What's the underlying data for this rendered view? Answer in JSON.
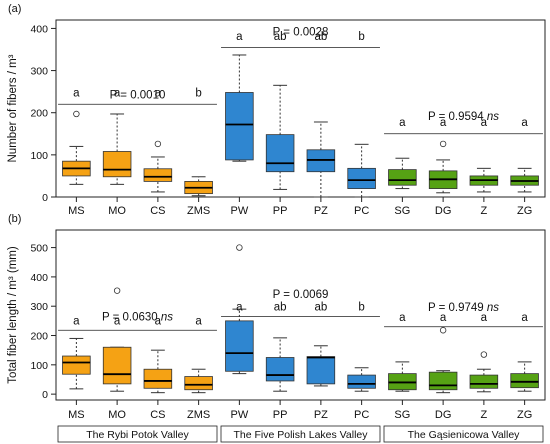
{
  "chart_data": [
    {
      "type": "box",
      "panel_label": "(a)",
      "ylabel": "Number of fibers / m³",
      "ylim": [
        0,
        420
      ],
      "yticks": [
        0,
        100,
        200,
        300,
        400
      ],
      "categories": [
        "MS",
        "MO",
        "CS",
        "ZMS",
        "PW",
        "PP",
        "PZ",
        "PC",
        "SG",
        "DG",
        "Z",
        "ZG"
      ],
      "colors": [
        "#f5a214",
        "#f5a214",
        "#f5a214",
        "#f5a214",
        "#2f86d0",
        "#2f86d0",
        "#2f86d0",
        "#2f86d0",
        "#56a214",
        "#56a214",
        "#56a214",
        "#56a214"
      ],
      "boxes": [
        {
          "min": 30,
          "q1": 50,
          "median": 68,
          "q3": 85,
          "max": 120,
          "outliers": [
            197
          ]
        },
        {
          "min": 30,
          "q1": 48,
          "median": 65,
          "q3": 108,
          "max": 197,
          "outliers": []
        },
        {
          "min": 12,
          "q1": 37,
          "median": 48,
          "q3": 67,
          "max": 95,
          "outliers": [
            126
          ]
        },
        {
          "min": 3,
          "q1": 8,
          "median": 22,
          "q3": 37,
          "max": 48,
          "outliers": []
        },
        {
          "min": 85,
          "q1": 88,
          "median": 172,
          "q3": 248,
          "max": 337,
          "outliers": []
        },
        {
          "min": 18,
          "q1": 60,
          "median": 80,
          "q3": 148,
          "max": 265,
          "outliers": []
        },
        {
          "min": 0,
          "q1": 60,
          "median": 88,
          "q3": 112,
          "max": 178,
          "outliers": []
        },
        {
          "min": 0,
          "q1": 20,
          "median": 40,
          "q3": 68,
          "max": 125,
          "outliers": []
        },
        {
          "min": 20,
          "q1": 28,
          "median": 40,
          "q3": 65,
          "max": 92,
          "outliers": []
        },
        {
          "min": 10,
          "q1": 20,
          "median": 42,
          "q3": 62,
          "max": 88,
          "outliers": [
            126
          ]
        },
        {
          "min": 12,
          "q1": 28,
          "median": 40,
          "q3": 50,
          "max": 68,
          "outliers": []
        },
        {
          "min": 12,
          "q1": 28,
          "median": 38,
          "q3": 50,
          "max": 68,
          "outliers": []
        }
      ],
      "letters": [
        "a",
        "a",
        "a",
        "b",
        "a",
        "ab",
        "ab",
        "b",
        "a",
        "a",
        "a",
        "a"
      ],
      "groups": [
        {
          "from": 0,
          "to": 3,
          "p_text": "P = 0.0010",
          "ns": "",
          "line_y": 220,
          "p_y": 243,
          "letter_y": 238
        },
        {
          "from": 4,
          "to": 7,
          "p_text": "P = 0.0028",
          "ns": "",
          "line_y": 355,
          "p_y": 393,
          "letter_y": 373
        },
        {
          "from": 8,
          "to": 11,
          "p_text": "P = 0.9594",
          "ns": "ns",
          "line_y": 150,
          "p_y": 192,
          "letter_y": 168
        }
      ]
    },
    {
      "type": "box",
      "panel_label": "(b)",
      "ylabel": "Total fiber length / m³ (mm)",
      "ylim": [
        -20,
        560
      ],
      "yticks": [
        0,
        100,
        200,
        300,
        400,
        500
      ],
      "categories": [
        "MS",
        "MO",
        "CS",
        "ZMS",
        "PW",
        "PP",
        "PZ",
        "PC",
        "SG",
        "DG",
        "Z",
        "ZG"
      ],
      "colors": [
        "#f5a214",
        "#f5a214",
        "#f5a214",
        "#f5a214",
        "#2f86d0",
        "#2f86d0",
        "#2f86d0",
        "#2f86d0",
        "#56a214",
        "#56a214",
        "#56a214",
        "#56a214"
      ],
      "boxes": [
        {
          "min": 18,
          "q1": 68,
          "median": 108,
          "q3": 130,
          "max": 190,
          "outliers": []
        },
        {
          "min": 10,
          "q1": 35,
          "median": 68,
          "q3": 160,
          "max": 160,
          "outliers": [
            353
          ]
        },
        {
          "min": 5,
          "q1": 20,
          "median": 45,
          "q3": 85,
          "max": 150,
          "outliers": []
        },
        {
          "min": 5,
          "q1": 15,
          "median": 32,
          "q3": 60,
          "max": 85,
          "outliers": []
        },
        {
          "min": 70,
          "q1": 78,
          "median": 140,
          "q3": 250,
          "max": 290,
          "outliers": [
            500
          ]
        },
        {
          "min": 10,
          "q1": 45,
          "median": 65,
          "q3": 125,
          "max": 192,
          "outliers": []
        },
        {
          "min": 28,
          "q1": 35,
          "median": 125,
          "q3": 128,
          "max": 165,
          "outliers": []
        },
        {
          "min": 10,
          "q1": 20,
          "median": 35,
          "q3": 65,
          "max": 90,
          "outliers": []
        },
        {
          "min": 10,
          "q1": 15,
          "median": 40,
          "q3": 70,
          "max": 110,
          "outliers": []
        },
        {
          "min": 5,
          "q1": 15,
          "median": 30,
          "q3": 75,
          "max": 80,
          "outliers": [
            218
          ]
        },
        {
          "min": 8,
          "q1": 20,
          "median": 35,
          "q3": 65,
          "max": 85,
          "outliers": [
            135
          ]
        },
        {
          "min": 10,
          "q1": 22,
          "median": 42,
          "q3": 70,
          "max": 110,
          "outliers": []
        }
      ],
      "letters": [
        "a",
        "a",
        "a",
        "a",
        "a",
        "ab",
        "ab",
        "b",
        "a",
        "a",
        "a",
        "a"
      ],
      "groups": [
        {
          "from": 0,
          "to": 3,
          "p_text": "P = 0.0630",
          "ns": "ns",
          "line_y": 218,
          "p_y": 265,
          "letter_y": 237
        },
        {
          "from": 4,
          "to": 7,
          "p_text": "P = 0.0069",
          "ns": "",
          "line_y": 265,
          "p_y": 342,
          "letter_y": 285
        },
        {
          "from": 8,
          "to": 11,
          "p_text": "P = 0.9749",
          "ns": "ns",
          "line_y": 230,
          "p_y": 298,
          "letter_y": 250
        }
      ],
      "valleys": [
        {
          "from": 0,
          "to": 3,
          "label": "The Rybi Potok Valley"
        },
        {
          "from": 4,
          "to": 7,
          "label": "The Five Polish Lakes Valley"
        },
        {
          "from": 8,
          "to": 11,
          "label": "The Gąsienicowa Valley"
        }
      ]
    }
  ]
}
